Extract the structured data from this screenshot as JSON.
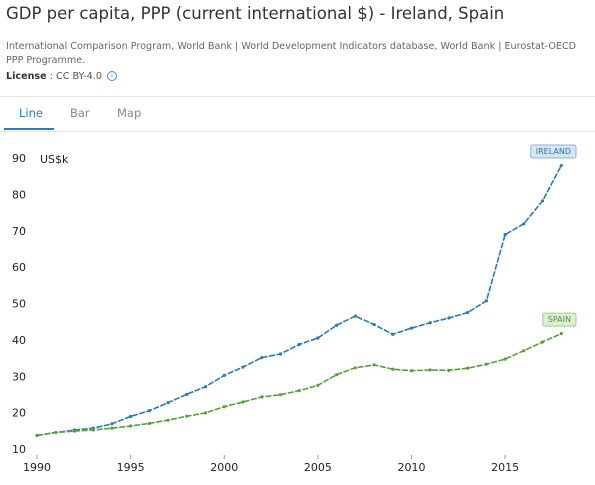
{
  "header": {
    "title": "GDP per capita, PPP (current international $) - Ireland, Spain",
    "source": "International Comparison Program, World Bank | World Development Indicators database, World Bank | Eurostat-OECD PPP Programme.",
    "license_label": "License",
    "license": ": CC BY-4.0"
  },
  "tabs": [
    "Line",
    "Bar",
    "Map"
  ],
  "chart_data": {
    "type": "line",
    "y_unit": "US$k",
    "x": [
      1990,
      1991,
      1992,
      1993,
      1994,
      1995,
      1996,
      1997,
      1998,
      1999,
      2000,
      2001,
      2002,
      2003,
      2004,
      2005,
      2006,
      2007,
      2008,
      2009,
      2010,
      2011,
      2012,
      2013,
      2014,
      2015,
      2016,
      2017,
      2018
    ],
    "series": [
      {
        "name": "IRELAND",
        "color": "#2f79b2",
        "values": [
          14,
          14.8,
          15.5,
          16,
          17.2,
          19.2,
          20.8,
          23,
          25.3,
          27.4,
          30.5,
          32.8,
          35.4,
          36.4,
          39,
          40.8,
          44.3,
          46.8,
          44.5,
          41.8,
          43.5,
          45,
          46.3,
          47.8,
          51,
          69.2,
          72.2,
          78.5,
          88.2
        ]
      },
      {
        "name": "SPAIN",
        "color": "#5a9e3e",
        "values": [
          14,
          14.8,
          15.2,
          15.5,
          16,
          16.6,
          17.3,
          18.2,
          19.3,
          20.2,
          21.9,
          23.2,
          24.6,
          25.2,
          26.3,
          27.8,
          30.7,
          32.6,
          33.4,
          32.2,
          31.8,
          32,
          31.9,
          32.5,
          33.6,
          35,
          37.3,
          39.7,
          42
        ]
      }
    ],
    "xlim": [
      1990,
      2019
    ],
    "xticks": [
      1990,
      1995,
      2000,
      2005,
      2010,
      2015
    ],
    "ylim": [
      10,
      90
    ],
    "yticks": [
      10,
      20,
      30,
      40,
      50,
      60,
      70,
      80,
      90
    ]
  }
}
